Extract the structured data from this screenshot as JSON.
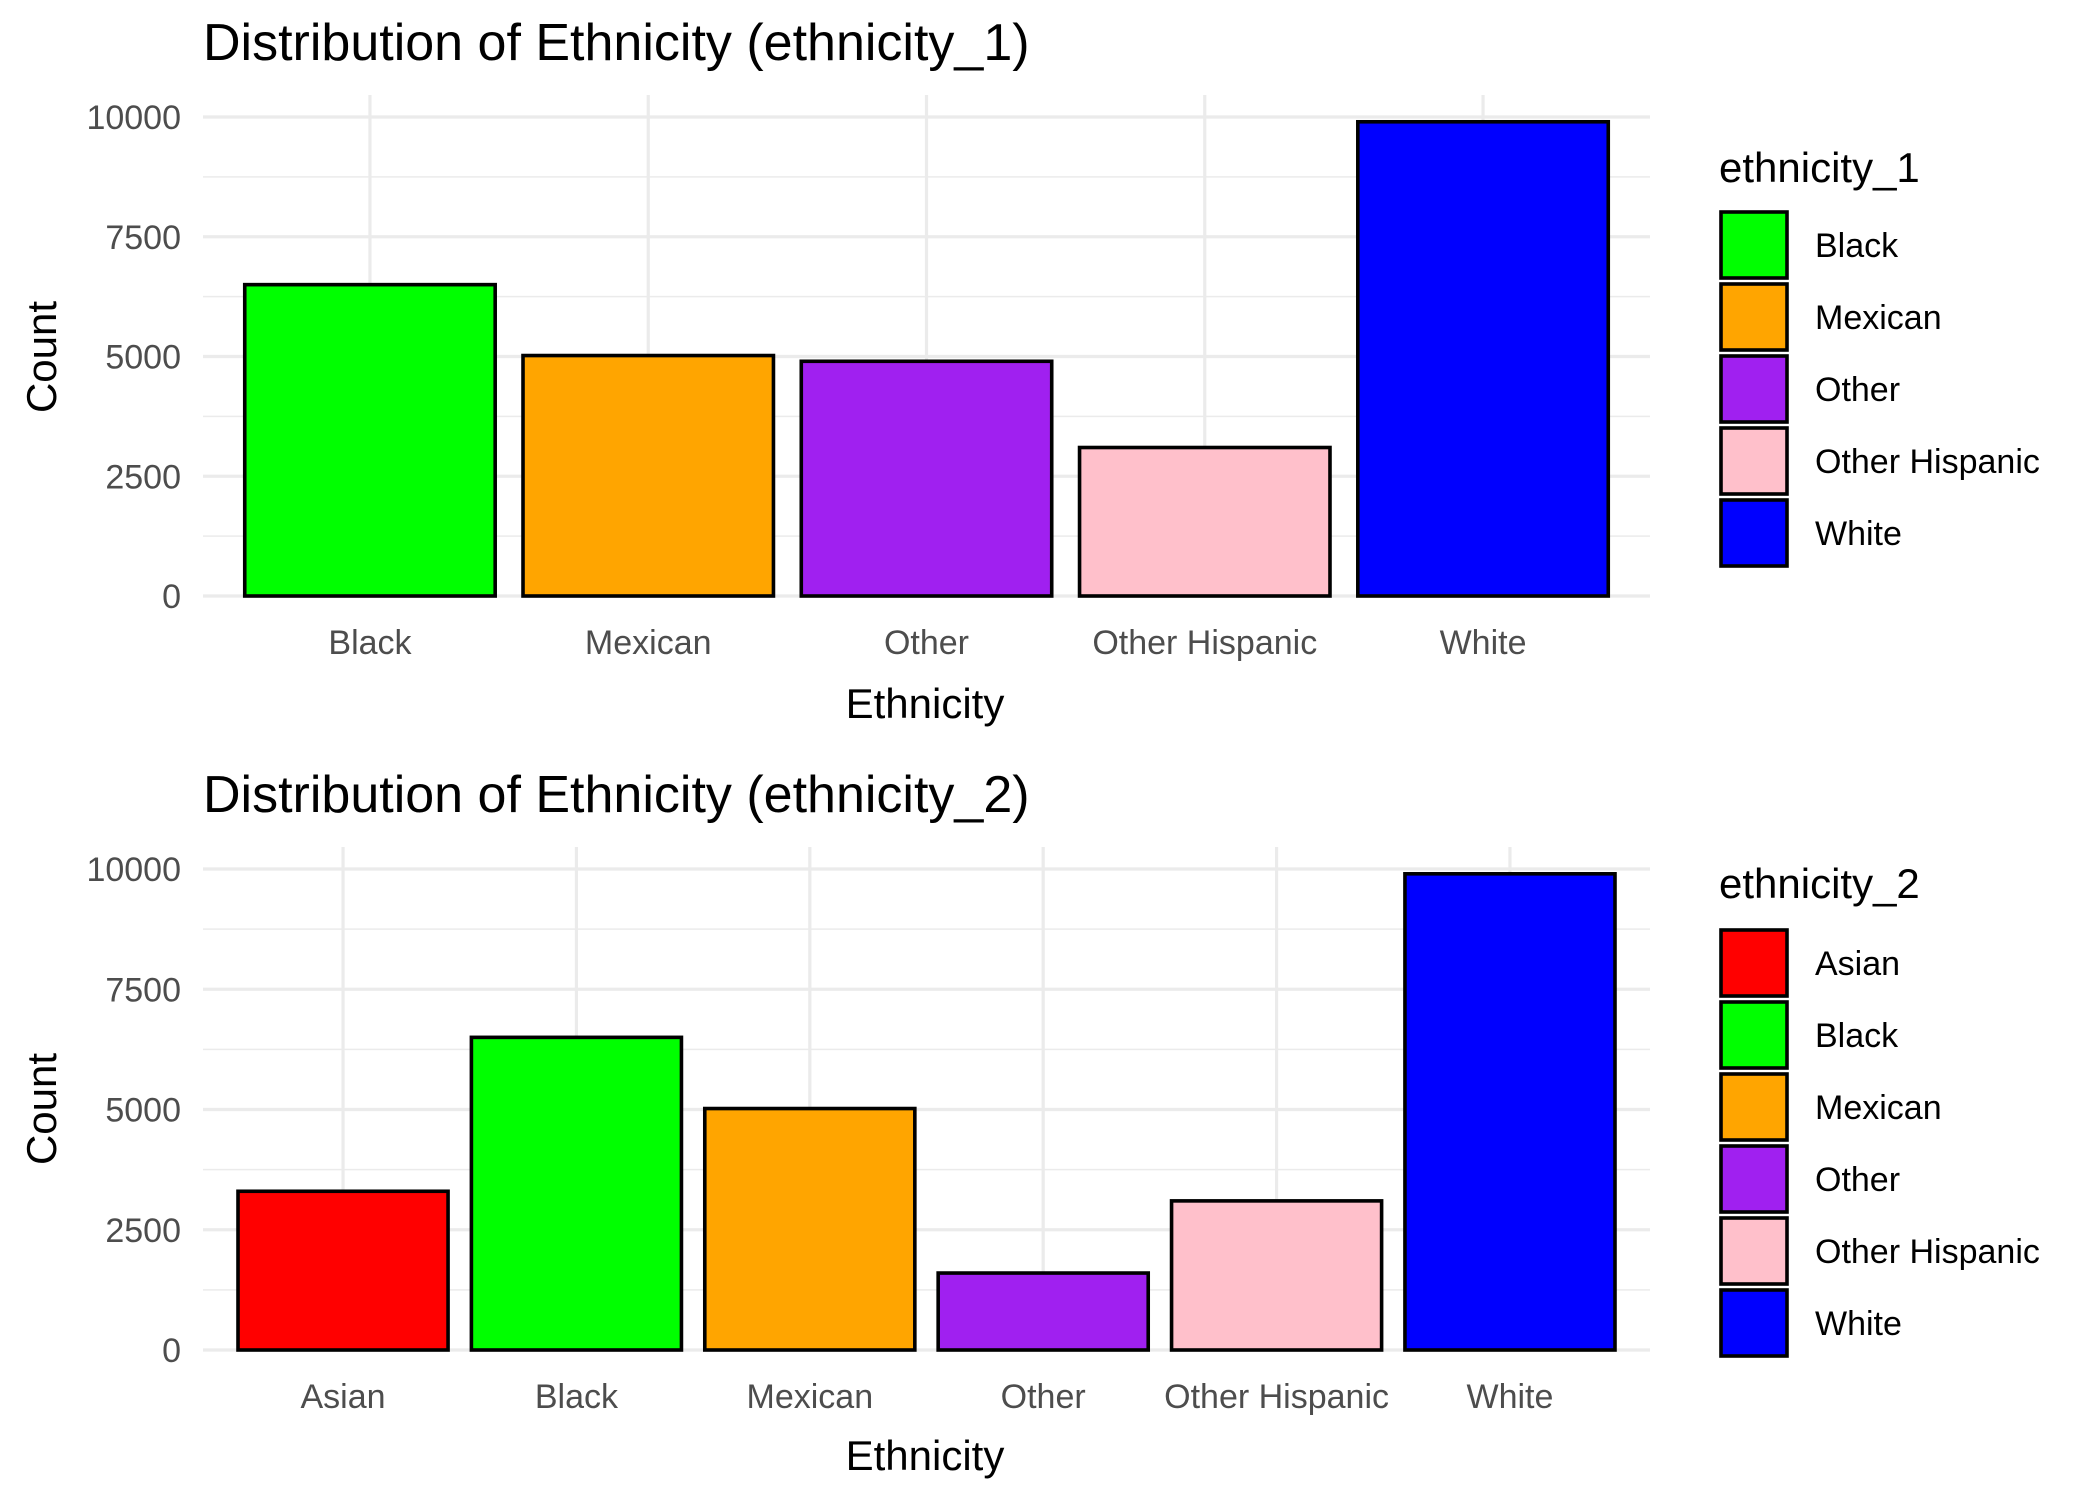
{
  "chart_data": [
    {
      "type": "bar",
      "title": "Distribution of Ethnicity (ethnicity_1)",
      "xlabel": "Ethnicity",
      "ylabel": "Count",
      "ylim": [
        0,
        10000
      ],
      "yticks": [
        0,
        2500,
        5000,
        7500,
        10000
      ],
      "grid": true,
      "legend": {
        "title": "ethnicity_1",
        "position": "right"
      },
      "categories": [
        "Black",
        "Mexican",
        "Other",
        "Other Hispanic",
        "White"
      ],
      "values": [
        6500,
        5020,
        4900,
        3100,
        9900
      ],
      "colors": [
        "#00ff00",
        "#ffa500",
        "#a020f0",
        "#ffc0cb",
        "#0000ff"
      ]
    },
    {
      "type": "bar",
      "title": "Distribution of Ethnicity (ethnicity_2)",
      "xlabel": "Ethnicity",
      "ylabel": "Count",
      "ylim": [
        0,
        10000
      ],
      "yticks": [
        0,
        2500,
        5000,
        7500,
        10000
      ],
      "grid": true,
      "legend": {
        "title": "ethnicity_2",
        "position": "right"
      },
      "categories": [
        "Asian",
        "Black",
        "Mexican",
        "Other",
        "Other Hispanic",
        "White"
      ],
      "values": [
        3300,
        6500,
        5020,
        1600,
        3100,
        9900
      ],
      "colors": [
        "#ff0000",
        "#00ff00",
        "#ffa500",
        "#a020f0",
        "#ffc0cb",
        "#0000ff"
      ]
    }
  ]
}
